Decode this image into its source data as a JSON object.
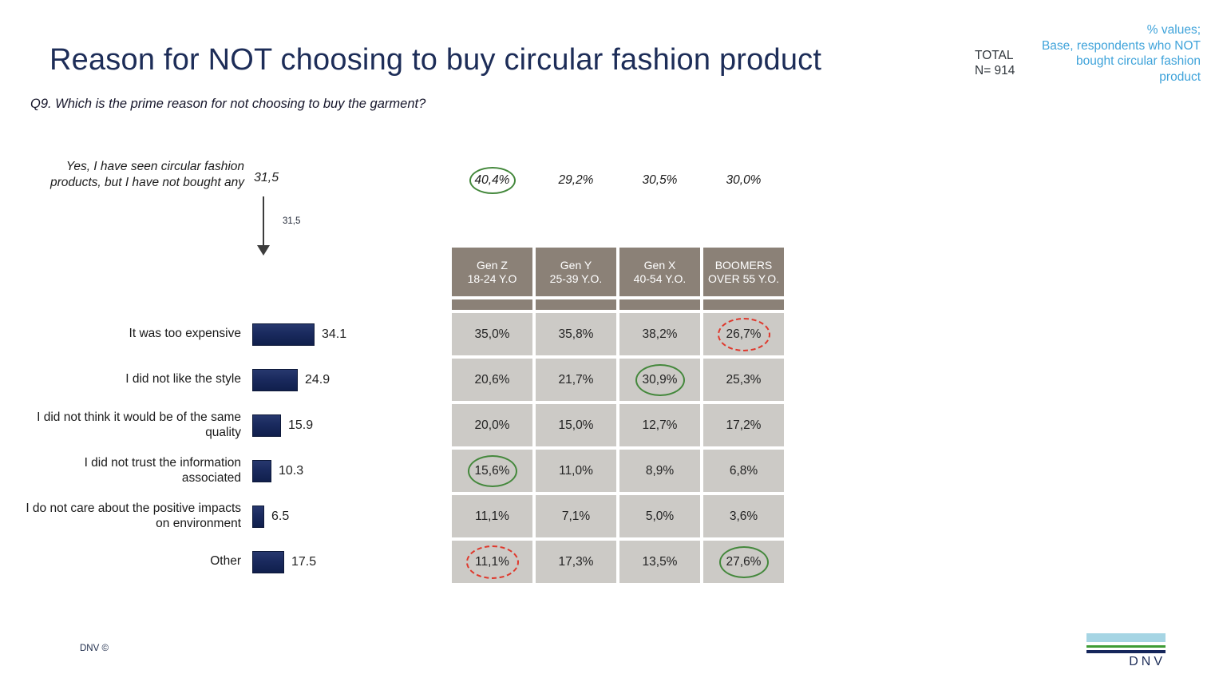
{
  "header": {
    "title": "Reason for NOT choosing to buy circular fashion product",
    "question": "Q9. Which is the prime reason for not choosing to buy the garment?",
    "total_label": "TOTAL",
    "total_value": "N= 914",
    "note_lines": [
      "% values;",
      "Base, respondents who NOT",
      "bought circular fashion",
      "product"
    ]
  },
  "funnel": {
    "label_line1": "Yes, I have seen circular fashion",
    "label_line2": "products, but I have not bought any",
    "value": "31,5",
    "arrow_label": "31,5"
  },
  "bars": {
    "items": [
      {
        "label": "It was too expensive",
        "value": "34.1"
      },
      {
        "label": "I did not like the style",
        "value": "24.9"
      },
      {
        "label": "I did not think it would be of the same quality",
        "value": "15.9"
      },
      {
        "label": "I did not trust the information associated",
        "value": "10.3"
      },
      {
        "label": "I do not care about the positive impacts on environment",
        "value": "6.5"
      },
      {
        "label": "Other",
        "value": "17.5"
      }
    ]
  },
  "table": {
    "headers": [
      {
        "line1": "Gen Z",
        "line2": "18-24 Y.O"
      },
      {
        "line1": "Gen Y",
        "line2": "25-39 Y.O."
      },
      {
        "line1": "Gen X",
        "line2": "40-54 Y.O."
      },
      {
        "line1": "BOOMERS",
        "line2": "OVER 55 Y.O."
      }
    ],
    "top_row": [
      "40,4%",
      "29,2%",
      "30,5%",
      "30,0%"
    ],
    "rows": [
      [
        "35,0%",
        "35,8%",
        "38,2%",
        "26,7%"
      ],
      [
        "20,6%",
        "21,7%",
        "30,9%",
        "25,3%"
      ],
      [
        "20,0%",
        "15,0%",
        "12,7%",
        "17,2%"
      ],
      [
        "15,6%",
        "11,0%",
        "8,9%",
        "6,8%"
      ],
      [
        "11,1%",
        "7,1%",
        "5,0%",
        "3,6%"
      ],
      [
        "11,1%",
        "17,3%",
        "13,5%",
        "27,6%"
      ]
    ],
    "highlights": [
      {
        "row": "top",
        "col": 0,
        "style": "green-solid"
      },
      {
        "row": 0,
        "col": 3,
        "style": "red-dashed"
      },
      {
        "row": 1,
        "col": 2,
        "style": "green-solid"
      },
      {
        "row": 3,
        "col": 0,
        "style": "green-solid"
      },
      {
        "row": 5,
        "col": 0,
        "style": "red-dashed"
      },
      {
        "row": 5,
        "col": 3,
        "style": "green-solid"
      }
    ]
  },
  "footer": {
    "copyright": "DNV ©",
    "logo_text": "DNV"
  },
  "colors": {
    "navy_title": "#1d2d58",
    "bar_navy": "#1a2a5e",
    "taupe": "#8b8177",
    "cell_gray": "#cccac6",
    "green": "#44883c",
    "red": "#df382c",
    "note_blue": "#3fa3da",
    "logo_light_blue": "#a6d5e4",
    "logo_green": "#3f9c35",
    "logo_navy": "#15265b"
  },
  "chart_data": {
    "type": "bar",
    "orientation": "horizontal",
    "title": "Reason for NOT choosing to buy circular fashion product",
    "question": "Q9. Which is the prime reason for not choosing to buy the garment?",
    "total_n": 914,
    "categories": [
      "It was too expensive",
      "I did not like the style",
      "I did not think it would be of the same quality",
      "I did not trust the information associated",
      "I do not care about the positive impacts on environment",
      "Other"
    ],
    "values": [
      34.1,
      24.9,
      15.9,
      10.3,
      6.5,
      17.5
    ],
    "funnel": {
      "label": "Yes, I have seen circular fashion products, but I have not bought any",
      "value": 31.5
    },
    "groups": {
      "columns": [
        "Gen Z 18-24 Y.O",
        "Gen Y 25-39 Y.O.",
        "Gen X 40-54 Y.O.",
        "BOOMERS OVER 55 Y.O."
      ],
      "seen_not_bought_pct": [
        40.4,
        29.2,
        30.5,
        30.0
      ],
      "rows_pct": [
        [
          35.0,
          35.8,
          38.2,
          26.7
        ],
        [
          20.6,
          21.7,
          30.9,
          25.3
        ],
        [
          20.0,
          15.0,
          12.7,
          17.2
        ],
        [
          15.6,
          11.0,
          8.9,
          6.8
        ],
        [
          11.1,
          7.1,
          5.0,
          3.6
        ],
        [
          11.1,
          17.3,
          13.5,
          27.6
        ]
      ],
      "highlights_green_solid": [
        [
          "seen_not_bought",
          0
        ],
        [
          1,
          2
        ],
        [
          3,
          0
        ],
        [
          5,
          3
        ]
      ],
      "highlights_red_dashed": [
        [
          0,
          3
        ],
        [
          5,
          0
        ]
      ]
    },
    "legend_position": "none",
    "grid": false
  }
}
